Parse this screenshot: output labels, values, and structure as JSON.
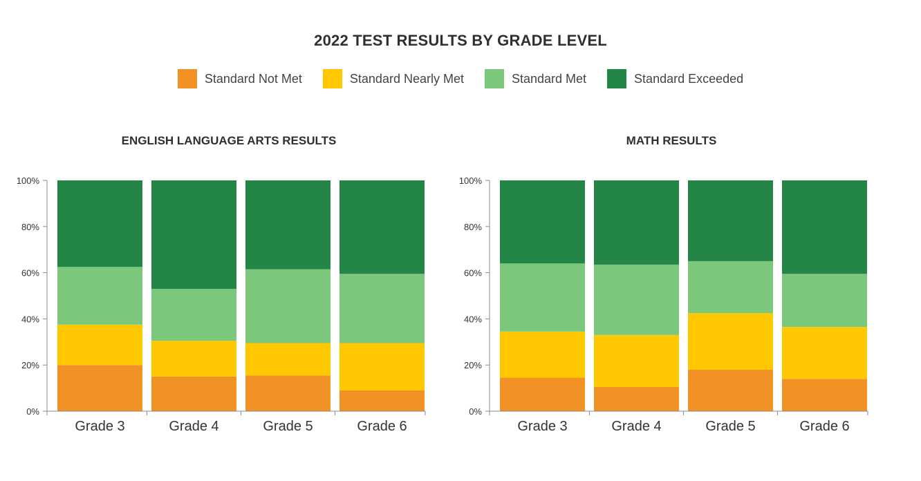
{
  "title": "2022 TEST RESULTS BY GRADE LEVEL",
  "legend": [
    {
      "label": "Standard Not Met",
      "color": "#f39224"
    },
    {
      "label": "Standard Nearly Met",
      "color": "#ffc800"
    },
    {
      "label": "Standard Met",
      "color": "#7bc77b"
    },
    {
      "label": "Standard Exceeded",
      "color": "#238646"
    }
  ],
  "chart_data": [
    {
      "type": "bar",
      "stacked": true,
      "title": "ENGLISH LANGUAGE ARTS RESULTS",
      "categories": [
        "Grade 3",
        "Grade 4",
        "Grade 5",
        "Grade 6"
      ],
      "yticks": [
        "0%",
        "20%",
        "40%",
        "60%",
        "80%",
        "100%"
      ],
      "ylim": [
        0,
        100
      ],
      "series": [
        {
          "name": "Standard Not Met",
          "values": [
            20,
            15,
            15.5,
            9
          ]
        },
        {
          "name": "Standard Nearly Met",
          "values": [
            17.5,
            15.5,
            14,
            20.5
          ]
        },
        {
          "name": "Standard Met",
          "values": [
            25,
            22.5,
            32,
            30
          ]
        },
        {
          "name": "Standard Exceeded",
          "values": [
            37.5,
            47,
            38.5,
            40.5
          ]
        }
      ]
    },
    {
      "type": "bar",
      "stacked": true,
      "title": "MATH RESULTS",
      "categories": [
        "Grade 3",
        "Grade 4",
        "Grade 5",
        "Grade 6"
      ],
      "yticks": [
        "0%",
        "20%",
        "40%",
        "60%",
        "80%",
        "100%"
      ],
      "ylim": [
        0,
        100
      ],
      "series": [
        {
          "name": "Standard Not Met",
          "values": [
            14.5,
            10.5,
            18,
            14
          ]
        },
        {
          "name": "Standard Nearly Met",
          "values": [
            20,
            22.5,
            24.5,
            22.5
          ]
        },
        {
          "name": "Standard Met",
          "values": [
            29.5,
            30.5,
            22.5,
            23
          ]
        },
        {
          "name": "Standard Exceeded",
          "values": [
            36,
            36.5,
            35,
            40.5
          ]
        }
      ]
    }
  ]
}
